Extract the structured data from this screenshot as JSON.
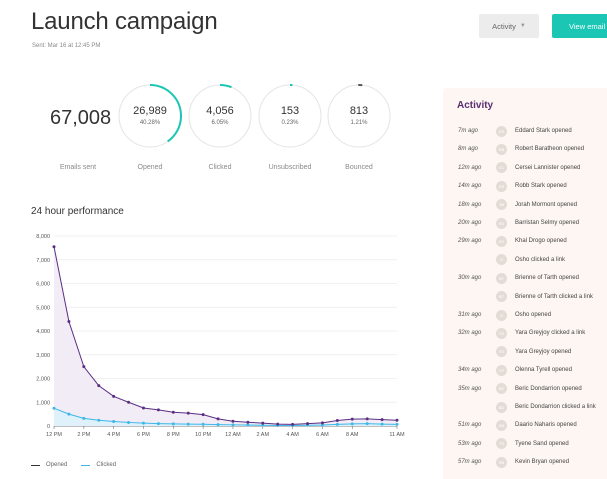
{
  "header": {
    "title": "Launch campaign",
    "sent": "Sent: Mar 16 at 12:45 PM",
    "activity_button": "Activity",
    "view_button": "View email"
  },
  "colors": {
    "accent": "#1bc6b4",
    "opened_line": "#5b2e82",
    "clicked_line": "#3db8e8",
    "activity_title": "#5a2d72"
  },
  "stats": {
    "emails_sent": {
      "value": "67,008",
      "label": "Emails sent"
    },
    "opened": {
      "value": "26,989",
      "percent": "40.28%",
      "label": "Opened",
      "fraction": 0.4028
    },
    "clicked": {
      "value": "4,056",
      "percent": "6.05%",
      "label": "Clicked",
      "fraction": 0.0605
    },
    "unsubscribed": {
      "value": "153",
      "percent": "0.23%",
      "label": "Unsubscribed",
      "fraction": 0.0023
    },
    "bounced": {
      "value": "813",
      "percent": "1.21%",
      "label": "Bounced",
      "fraction": 0.0121
    }
  },
  "performance": {
    "title": "24 hour performance"
  },
  "chart_data": {
    "type": "line",
    "title": "24 hour performance",
    "x_tick_labels": [
      "12 PM",
      "2 PM",
      "4 PM",
      "6 PM",
      "8 PM",
      "10 PM",
      "12 AM",
      "2 AM",
      "4 AM",
      "6 AM",
      "8 AM",
      "11 AM"
    ],
    "y_tick_labels": [
      "0",
      "1,000",
      "2,000",
      "3,000",
      "4,000",
      "5,000",
      "6,000",
      "7,000",
      "8,000"
    ],
    "ylim": [
      0,
      8000
    ],
    "xlim": [
      0,
      23
    ],
    "x": [
      0,
      1,
      2,
      3,
      4,
      5,
      6,
      7,
      8,
      9,
      10,
      11,
      12,
      13,
      14,
      15,
      16,
      17,
      18,
      19,
      20,
      21,
      22,
      23
    ],
    "series": [
      {
        "name": "Opened",
        "values": [
          7550,
          4400,
          2500,
          1700,
          1250,
          1000,
          760,
          680,
          580,
          540,
          480,
          300,
          200,
          160,
          120,
          80,
          70,
          100,
          130,
          230,
          290,
          300,
          270,
          240
        ]
      },
      {
        "name": "Clicked",
        "values": [
          750,
          500,
          320,
          240,
          190,
          150,
          120,
          100,
          90,
          80,
          75,
          60,
          50,
          40,
          30,
          20,
          20,
          30,
          40,
          70,
          90,
          100,
          80,
          70
        ]
      }
    ],
    "grid": true,
    "legend": "bottom-left"
  },
  "activity": {
    "title": "Activity",
    "items": [
      {
        "time": "7m ago",
        "initials": "ES",
        "text": "Eddard Stark opened"
      },
      {
        "time": "8m ago",
        "initials": "RB",
        "text": "Robert Baratheon opened"
      },
      {
        "time": "12m ago",
        "initials": "CL",
        "text": "Cersei Lannister opened"
      },
      {
        "time": "14m ago",
        "initials": "RS",
        "text": "Robb Stark opened"
      },
      {
        "time": "18m ago",
        "initials": "JM",
        "text": "Jorah Mormont opened"
      },
      {
        "time": "20m ago",
        "initials": "BS",
        "text": "Barristan Selmy opened"
      },
      {
        "time": "29m ago",
        "initials": "KD",
        "text": "Khal Drogo opened"
      },
      {
        "time": "",
        "initials": "O",
        "text": "Osho clicked a link"
      },
      {
        "time": "30m ago",
        "initials": "BT",
        "text": "Brienne of Tarth opened"
      },
      {
        "time": "",
        "initials": "BT",
        "text": "Brienne of Tarth clicked a link"
      },
      {
        "time": "31m ago",
        "initials": "O",
        "text": "Osho opened"
      },
      {
        "time": "32m ago",
        "initials": "YG",
        "text": "Yara Greyjoy clicked a link"
      },
      {
        "time": "",
        "initials": "YG",
        "text": "Yara Greyjoy opened"
      },
      {
        "time": "34m ago",
        "initials": "OT",
        "text": "Olenna Tyrell opened"
      },
      {
        "time": "35m ago",
        "initials": "BD",
        "text": "Beric Dondarrion opened"
      },
      {
        "time": "",
        "initials": "BD",
        "text": "Beric Dondarrion clicked a link"
      },
      {
        "time": "51m ago",
        "initials": "DN",
        "text": "Daario Naharis opened"
      },
      {
        "time": "53m ago",
        "initials": "TS",
        "text": "Tyene Sand opened"
      },
      {
        "time": "57m ago",
        "initials": "KB",
        "text": "Kevin Bryan opened"
      }
    ]
  }
}
